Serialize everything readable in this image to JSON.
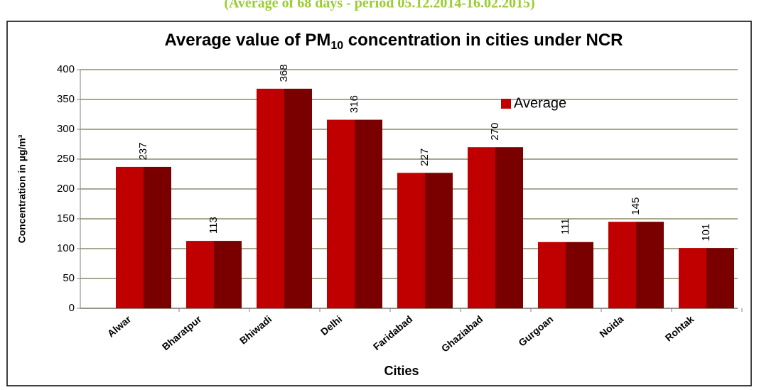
{
  "chart_data": {
    "type": "bar",
    "subtitle": "(Average of 68 days - period 05.12.2014-16.02.2015)",
    "title": {
      "prefix": "Average value of PM",
      "subscript": "10",
      "suffix": " concentration in cities under NCR"
    },
    "x_label": "Cities",
    "y_label": "Concentration in µg/m³",
    "categories": [
      "Alwar",
      "Bharatpur",
      "Bhiwadi",
      "Delhi",
      "Faridabad",
      "Ghaziabad",
      "Gurgoan",
      "Noida",
      "Rohtak"
    ],
    "series": [
      {
        "name": "Average",
        "color": "#c00000",
        "values": [
          237,
          113,
          368,
          316,
          227,
          270,
          111,
          145,
          101
        ]
      }
    ],
    "ylim": [
      0,
      400
    ],
    "yticks": [
      0,
      50,
      100,
      150,
      200,
      250,
      300,
      350,
      400
    ],
    "grid": true
  }
}
